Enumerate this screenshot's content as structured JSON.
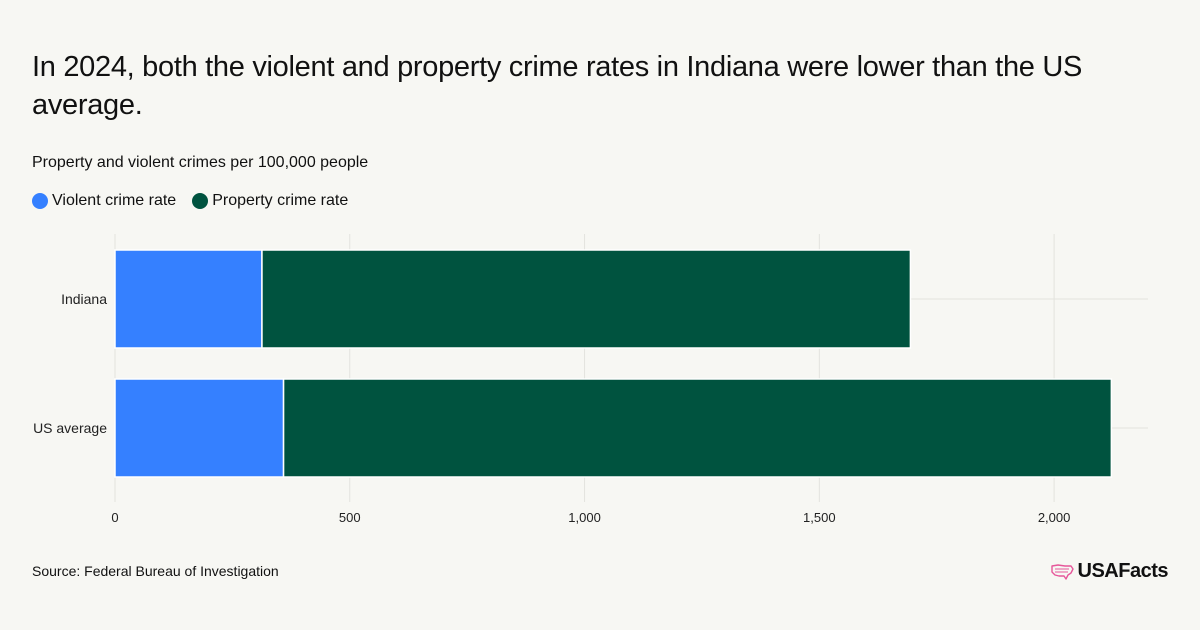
{
  "header": {
    "title": "In 2024, both the violent and property crime rates in Indiana were lower than the US average.",
    "subtitle": "Property and violent crimes per 100,000 people"
  },
  "legend": {
    "items": [
      {
        "label": "Violent crime rate",
        "color": "#3580ff"
      },
      {
        "label": "Property crime rate",
        "color": "#00533f"
      }
    ]
  },
  "footer": {
    "source": "Source: Federal Bureau of Investigation",
    "brand": "USAFacts",
    "brand_icon": "usa-map-icon",
    "brand_icon_color": "#e6579a"
  },
  "chart_data": {
    "type": "bar",
    "orientation": "horizontal",
    "stacked": true,
    "categories": [
      "Indiana",
      "US average"
    ],
    "series": [
      {
        "name": "Violent crime rate",
        "values": [
          313,
          359
        ],
        "color": "#3580ff"
      },
      {
        "name": "Property crime rate",
        "values": [
          1381,
          1763
        ],
        "color": "#00533f"
      }
    ],
    "xlim": [
      0,
      2200
    ],
    "x_ticks": [
      0,
      500,
      1000,
      1500,
      2000
    ],
    "x_tick_labels": [
      "0",
      "500",
      "1,000",
      "1,500",
      "2,000"
    ],
    "grid": true,
    "legend_position": "top-left"
  }
}
